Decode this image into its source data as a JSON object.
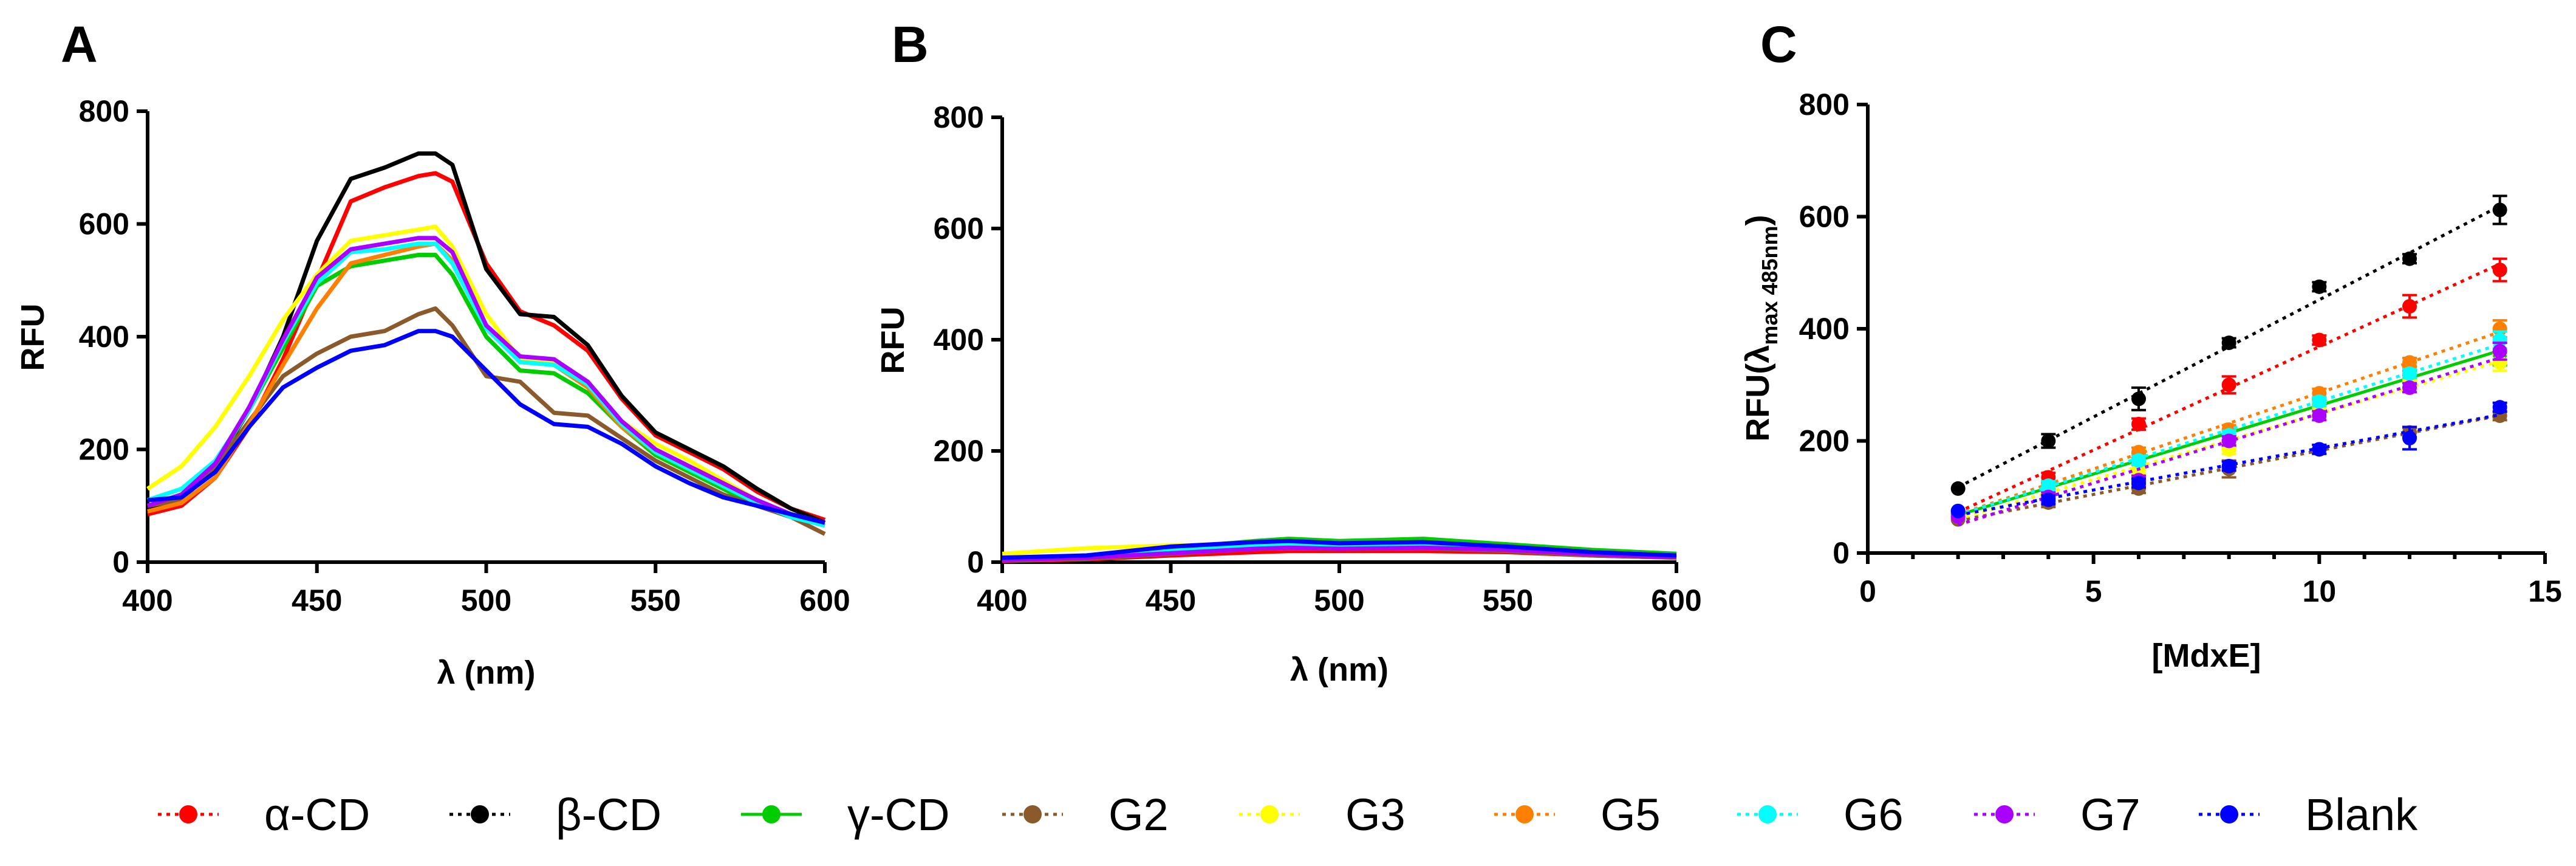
{
  "chart_data": [
    {
      "panel": "A",
      "type": "line",
      "title": "",
      "xlabel": "λ (nm)",
      "ylabel": "RFU",
      "xlim": [
        400,
        600
      ],
      "ylim": [
        0,
        800
      ],
      "xticks": [
        400,
        450,
        500,
        550,
        600
      ],
      "yticks": [
        0,
        200,
        400,
        600,
        800
      ],
      "x": [
        400,
        410,
        420,
        430,
        440,
        450,
        460,
        470,
        480,
        485,
        490,
        500,
        510,
        520,
        530,
        540,
        550,
        560,
        570,
        580,
        590,
        600
      ],
      "series": [
        {
          "name": "α-CD",
          "color": "#ff0000",
          "values": [
            85,
            100,
            150,
            240,
            360,
            500,
            640,
            665,
            685,
            690,
            675,
            530,
            445,
            420,
            375,
            290,
            225,
            195,
            165,
            125,
            95,
            75
          ]
        },
        {
          "name": "β-CD",
          "color": "#000000",
          "values": [
            95,
            110,
            170,
            270,
            400,
            570,
            680,
            700,
            725,
            725,
            705,
            520,
            440,
            435,
            385,
            295,
            230,
            200,
            170,
            130,
            95,
            70
          ]
        },
        {
          "name": "γ-CD",
          "color": "#00cc00",
          "values": [
            100,
            120,
            175,
            270,
            380,
            490,
            525,
            535,
            545,
            545,
            510,
            400,
            340,
            335,
            300,
            240,
            190,
            160,
            130,
            100,
            80,
            65
          ]
        },
        {
          "name": "G2",
          "color": "#8b5a2b",
          "values": [
            100,
            110,
            170,
            250,
            330,
            370,
            400,
            410,
            440,
            450,
            420,
            330,
            320,
            265,
            260,
            220,
            180,
            150,
            120,
            100,
            80,
            50
          ]
        },
        {
          "name": "G3",
          "color": "#ffff00",
          "values": [
            130,
            170,
            240,
            330,
            430,
            510,
            570,
            580,
            590,
            595,
            560,
            440,
            360,
            355,
            320,
            250,
            210,
            180,
            145,
            110,
            85,
            70
          ]
        },
        {
          "name": "G5",
          "color": "#ff8000",
          "values": [
            90,
            105,
            150,
            245,
            350,
            450,
            530,
            545,
            560,
            565,
            535,
            420,
            355,
            350,
            310,
            240,
            195,
            165,
            135,
            105,
            85,
            70
          ]
        },
        {
          "name": "G6",
          "color": "#00ffff",
          "values": [
            110,
            130,
            180,
            270,
            390,
            495,
            550,
            555,
            565,
            565,
            530,
            415,
            355,
            350,
            315,
            245,
            195,
            165,
            135,
            105,
            80,
            65
          ]
        },
        {
          "name": "G7",
          "color": "#aa00ff",
          "values": [
            100,
            120,
            175,
            275,
            395,
            505,
            555,
            565,
            575,
            575,
            550,
            420,
            365,
            360,
            320,
            250,
            200,
            170,
            140,
            110,
            85,
            70
          ]
        },
        {
          "name": "Blank",
          "color": "#0000ff",
          "values": [
            110,
            115,
            160,
            240,
            310,
            345,
            375,
            385,
            410,
            410,
            400,
            340,
            280,
            245,
            240,
            210,
            170,
            140,
            115,
            100,
            85,
            70
          ]
        }
      ]
    },
    {
      "panel": "B",
      "type": "line",
      "title": "",
      "xlabel": "λ (nm)",
      "ylabel": "RFU",
      "xlim": [
        400,
        600
      ],
      "ylim": [
        0,
        800
      ],
      "xticks": [
        400,
        450,
        500,
        550,
        600
      ],
      "yticks": [
        0,
        200,
        400,
        600,
        800
      ],
      "x": [
        400,
        425,
        450,
        475,
        485,
        500,
        525,
        550,
        575,
        600
      ],
      "series": [
        {
          "name": "α-CD",
          "color": "#ff0000",
          "values": [
            2,
            5,
            12,
            18,
            20,
            20,
            20,
            18,
            12,
            8
          ]
        },
        {
          "name": "β-CD",
          "color": "#000000",
          "values": [
            5,
            8,
            18,
            28,
            30,
            28,
            28,
            24,
            15,
            8
          ]
        },
        {
          "name": "γ-CD",
          "color": "#00cc00",
          "values": [
            5,
            12,
            25,
            38,
            42,
            38,
            42,
            32,
            22,
            15
          ]
        },
        {
          "name": "G2",
          "color": "#8b5a2b",
          "values": [
            3,
            6,
            15,
            24,
            25,
            24,
            25,
            20,
            12,
            8
          ]
        },
        {
          "name": "G3",
          "color": "#ffff00",
          "values": [
            15,
            25,
            30,
            32,
            32,
            30,
            32,
            26,
            18,
            12
          ]
        },
        {
          "name": "G5",
          "color": "#ff8000",
          "values": [
            4,
            8,
            16,
            24,
            26,
            24,
            26,
            22,
            14,
            9
          ]
        },
        {
          "name": "G6",
          "color": "#00ffff",
          "values": [
            6,
            10,
            20,
            30,
            32,
            30,
            32,
            26,
            16,
            10
          ]
        },
        {
          "name": "G7",
          "color": "#aa00ff",
          "values": [
            4,
            8,
            16,
            24,
            26,
            24,
            26,
            22,
            14,
            9
          ]
        },
        {
          "name": "Blank",
          "color": "#0000ff",
          "values": [
            8,
            12,
            28,
            36,
            38,
            34,
            36,
            28,
            18,
            12
          ]
        }
      ]
    },
    {
      "panel": "C",
      "type": "scatter",
      "title": "",
      "xlabel": "[MdxE]",
      "ylabel": "RFU(λmax 485nm)",
      "ylabel_main": "RFU(λ",
      "ylabel_sub": "max 485nm",
      "ylabel_close": ")",
      "xlim": [
        0,
        15
      ],
      "ylim": [
        0,
        800
      ],
      "xticks": [
        0,
        5,
        10,
        15
      ],
      "yticks": [
        0,
        200,
        400,
        600,
        800
      ],
      "x": [
        2,
        4,
        6,
        8,
        10,
        12,
        14
      ],
      "series": [
        {
          "name": "α-CD",
          "color": "#ff0000",
          "line": "dotted",
          "values": [
            70,
            135,
            230,
            300,
            380,
            440,
            505
          ],
          "err": [
            0,
            8,
            10,
            15,
            8,
            20,
            20
          ]
        },
        {
          "name": "β-CD",
          "color": "#000000",
          "line": "dotted",
          "values": [
            115,
            200,
            275,
            375,
            475,
            525,
            612
          ],
          "err": [
            0,
            12,
            20,
            8,
            8,
            8,
            25
          ]
        },
        {
          "name": "γ-CD",
          "color": "#00cc00",
          "line": "solid",
          "values": [
            70,
            115,
            170,
            200,
            265,
            325,
            355
          ],
          "err": [
            0,
            8,
            8,
            10,
            8,
            8,
            20
          ]
        },
        {
          "name": "G2",
          "color": "#8b5a2b",
          "line": "dotted",
          "values": [
            60,
            90,
            115,
            150,
            185,
            215,
            245
          ],
          "err": [
            0,
            8,
            8,
            15,
            8,
            8,
            8
          ]
        },
        {
          "name": "G3",
          "color": "#ffff00",
          "line": "dotted",
          "values": [
            65,
            110,
            150,
            185,
            260,
            300,
            340
          ],
          "err": [
            0,
            8,
            8,
            8,
            8,
            8,
            15
          ]
        },
        {
          "name": "G5",
          "color": "#ff8000",
          "line": "dotted",
          "values": [
            75,
            120,
            180,
            220,
            285,
            340,
            400
          ],
          "err": [
            0,
            8,
            8,
            8,
            8,
            8,
            15
          ]
        },
        {
          "name": "G6",
          "color": "#00ffff",
          "line": "dotted",
          "values": [
            75,
            120,
            165,
            210,
            270,
            320,
            380
          ],
          "err": [
            0,
            8,
            8,
            8,
            8,
            8,
            15
          ]
        },
        {
          "name": "G7",
          "color": "#aa00ff",
          "line": "dotted",
          "values": [
            65,
            100,
            130,
            200,
            245,
            295,
            360
          ],
          "err": [
            0,
            8,
            8,
            8,
            8,
            8,
            15
          ]
        },
        {
          "name": "Blank",
          "color": "#0000ff",
          "line": "dotted",
          "values": [
            75,
            95,
            125,
            155,
            185,
            205,
            260
          ],
          "err": [
            0,
            8,
            8,
            8,
            8,
            20,
            8
          ]
        }
      ]
    }
  ],
  "legend": [
    {
      "label": "α-CD",
      "color": "#ff0000",
      "line": "dotted"
    },
    {
      "label": "β-CD",
      "color": "#000000",
      "line": "dotted"
    },
    {
      "label": "γ-CD",
      "color": "#00cc00",
      "line": "solid"
    },
    {
      "label": "G2",
      "color": "#8b5a2b",
      "line": "dotted"
    },
    {
      "label": "G3",
      "color": "#ffff00",
      "line": "dotted"
    },
    {
      "label": "G5",
      "color": "#ff8000",
      "line": "dotted"
    },
    {
      "label": "G6",
      "color": "#00ffff",
      "line": "dotted"
    },
    {
      "label": "G7",
      "color": "#aa00ff",
      "line": "dotted"
    },
    {
      "label": "Blank",
      "color": "#0000ff",
      "line": "dotted"
    }
  ]
}
